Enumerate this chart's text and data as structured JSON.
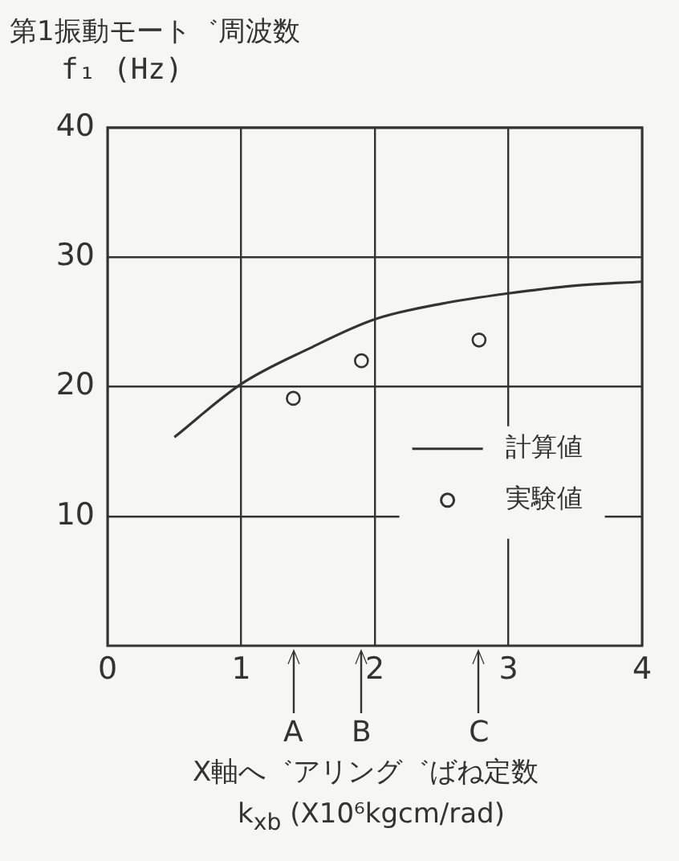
{
  "chart_data": {
    "type": "line",
    "title": "第1振動モート゛周波数",
    "ylabel": "f₁ (Hz)",
    "xlabel": "X軸へ゛アリング゛ばね定数\nk$_{xb}$ (X10⁶kgcm/rad)",
    "xlim": [
      0,
      4
    ],
    "xticks": [
      0,
      1,
      2,
      3,
      4
    ],
    "ylim": [
      0,
      40
    ],
    "yticks": [
      10,
      20,
      30,
      40
    ],
    "grid": true,
    "legend": "right",
    "series": [
      {
        "name": "計算値",
        "color": "#333333",
        "x": [
          0.5,
          1,
          1.5,
          2,
          2.5,
          3,
          3.5,
          4
        ],
        "values": [
          16.1,
          20.2,
          22.9,
          25.2,
          26.4,
          27.2,
          27.8,
          28.1
        ]
      },
      {
        "name": "実験値",
        "type": "scatter",
        "marker": "circle",
        "color": "#333333",
        "x": [
          1.39,
          1.9,
          2.78
        ],
        "values": [
          19.1,
          22.0,
          23.6
        ]
      }
    ],
    "annotations": [
      "A",
      "B",
      "C"
    ]
  }
}
